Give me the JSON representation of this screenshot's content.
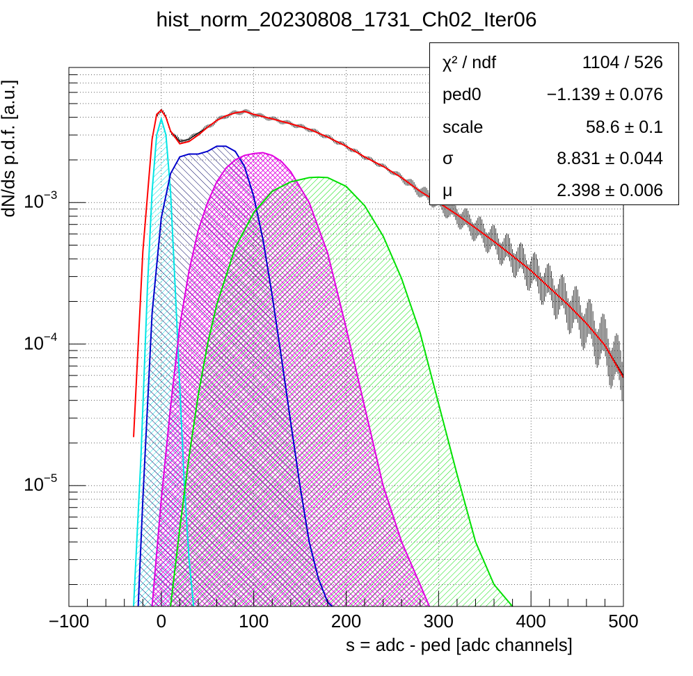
{
  "chart_data": {
    "type": "line",
    "title": "hist_norm_20230808_1731_Ch02_Iter06",
    "xlabel": "s = adc - ped [adc channels]",
    "ylabel": "dN/ds p.d.f. [a.u.]",
    "xlim": [
      -100,
      500
    ],
    "ylim": [
      1.4e-06,
      0.009
    ],
    "yscale": "log",
    "grid": true,
    "x_ticks": [
      "−100",
      "0",
      "100",
      "200",
      "300",
      "400",
      "500"
    ],
    "y_ticks": [
      {
        "base": "10",
        "exp": "−5",
        "value": 1e-05
      },
      {
        "base": "10",
        "exp": "−4",
        "value": 0.0001
      },
      {
        "base": "10",
        "exp": "−3",
        "value": 0.001
      }
    ],
    "stats_box": {
      "placement": "top-right",
      "rows": [
        {
          "name": "χ² / ndf",
          "value": "1104 / 526"
        },
        {
          "name": "ped0",
          "value": "−1.139 ± 0.076"
        },
        {
          "name": "scale",
          "value": "58.6 ± 0.1"
        },
        {
          "name": "σ",
          "value": "8.831 ± 0.044"
        },
        {
          "name": "μ",
          "value": "2.398 ± 0.006"
        }
      ]
    },
    "data_histogram": {
      "color": "#000000",
      "x": [
        -30,
        -20,
        -10,
        -5,
        0,
        5,
        10,
        20,
        30,
        40,
        50,
        60,
        70,
        80,
        90,
        100,
        120,
        140,
        160,
        180,
        200,
        220,
        240,
        260,
        280,
        300,
        320,
        340,
        360,
        380,
        400,
        420,
        440,
        460,
        480,
        500
      ],
      "y": [
        2.2e-05,
        0.00045,
        0.0028,
        0.0042,
        0.0045,
        0.004,
        0.0032,
        0.0027,
        0.0028,
        0.0031,
        0.0034,
        0.0038,
        0.0041,
        0.0043,
        0.0044,
        0.0042,
        0.0039,
        0.0036,
        0.0033,
        0.0029,
        0.0025,
        0.0021,
        0.0018,
        0.0015,
        0.0012,
        0.001,
        0.00082,
        0.00066,
        0.00053,
        0.00042,
        0.00033,
        0.00025,
        0.00019,
        0.00014,
        9.8e-05,
        6e-05
      ]
    },
    "series": [
      {
        "color": "#ff0000",
        "role": "total fit",
        "x": [
          -30,
          -20,
          -10,
          -5,
          0,
          5,
          10,
          20,
          30,
          40,
          50,
          60,
          70,
          80,
          90,
          100,
          120,
          140,
          160,
          180,
          200,
          220,
          240,
          260,
          280,
          300,
          320,
          340,
          360,
          380,
          400,
          420,
          440,
          460,
          480,
          500
        ],
        "y": [
          2.2e-05,
          0.00045,
          0.0028,
          0.0042,
          0.0045,
          0.004,
          0.0032,
          0.0026,
          0.0027,
          0.003,
          0.0034,
          0.0038,
          0.0041,
          0.0043,
          0.0044,
          0.0042,
          0.0039,
          0.0036,
          0.0033,
          0.0029,
          0.0025,
          0.0021,
          0.0018,
          0.0015,
          0.0012,
          0.001,
          0.00082,
          0.00066,
          0.00053,
          0.00042,
          0.00033,
          0.00025,
          0.00019,
          0.00014,
          9.8e-05,
          5.8e-05
        ]
      },
      {
        "color": "#00e5e5",
        "role": "pedestal (0 p.e.)",
        "fill": true,
        "hatch": "hatch-cyan",
        "x": [
          -30,
          -22,
          -15,
          -10,
          -5,
          0,
          5,
          10,
          15,
          20,
          25,
          30,
          35
        ],
        "y": [
          1.4e-06,
          1.6e-05,
          0.00025,
          0.0012,
          0.003,
          0.0039,
          0.003,
          0.0012,
          0.00025,
          5e-05,
          1e-05,
          3e-06,
          1.4e-06
        ]
      },
      {
        "color": "#0000cc",
        "role": "1 p.e.",
        "fill": true,
        "hatch": "hatch-navy",
        "x": [
          -25,
          -20,
          -10,
          0,
          10,
          20,
          30,
          40,
          50,
          60,
          70,
          80,
          90,
          100,
          110,
          120,
          130,
          140,
          150,
          160,
          170,
          180,
          185
        ],
        "y": [
          1.4e-06,
          8e-06,
          0.000165,
          0.00078,
          0.0016,
          0.0021,
          0.0022,
          0.0022,
          0.0023,
          0.0025,
          0.0025,
          0.0023,
          0.0018,
          0.0011,
          0.00055,
          0.00022,
          8e-05,
          2.8e-05,
          1e-05,
          4e-06,
          2.2e-06,
          1.5e-06,
          1.4e-06
        ]
      },
      {
        "color": "#e000e0",
        "role": "2 p.e.",
        "fill": true,
        "hatch": "hatch-magenta",
        "x": [
          -10,
          0,
          10,
          20,
          30,
          40,
          50,
          60,
          70,
          80,
          90,
          100,
          110,
          120,
          130,
          140,
          160,
          180,
          200,
          220,
          240,
          260,
          280,
          290
        ],
        "y": [
          1.4e-06,
          8e-06,
          3.6e-05,
          0.000135,
          0.00033,
          0.00064,
          0.001,
          0.0014,
          0.00175,
          0.002,
          0.00215,
          0.00222,
          0.00225,
          0.00215,
          0.00195,
          0.00165,
          0.001,
          0.00044,
          0.00013,
          3.6e-05,
          1e-05,
          4e-06,
          2e-06,
          1.4e-06
        ]
      },
      {
        "color": "#00e000",
        "role": "3 p.e.",
        "fill": true,
        "hatch": "hatch-green",
        "x": [
          10,
          20,
          30,
          40,
          50,
          60,
          80,
          100,
          120,
          140,
          160,
          170,
          180,
          200,
          220,
          240,
          260,
          280,
          300,
          320,
          340,
          360,
          380
        ],
        "y": [
          1.4e-06,
          5e-06,
          1.6e-05,
          4.4e-05,
          0.0001,
          0.00019,
          0.00048,
          0.00085,
          0.0012,
          0.0014,
          0.0015,
          0.00151,
          0.0015,
          0.0013,
          0.00095,
          0.00058,
          0.00029,
          0.00012,
          3.8e-05,
          1.2e-05,
          4e-06,
          2e-06,
          1.4e-06
        ]
      }
    ]
  }
}
